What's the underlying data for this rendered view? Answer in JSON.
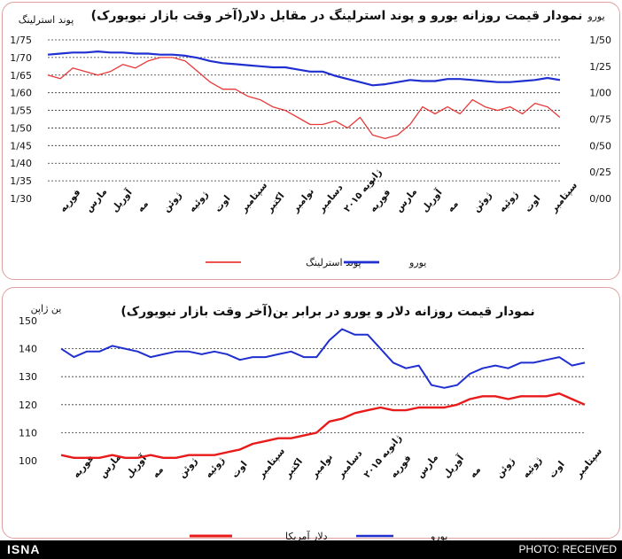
{
  "footer": {
    "brand": "ISNA",
    "credit": "PHOTO: RECEIVED"
  },
  "chart_data": [
    {
      "type": "line",
      "title": "نمودار قیمت روزانه  یورو و پوند استرلینگ در مقابل دلار(آخر وقت بازار نیویورک)",
      "left_axis_label": "پوند استرلینگ",
      "right_axis_label": "یورو",
      "left_ticks": [
        "1/30",
        "1/35",
        "1/40",
        "1/45",
        "1/50",
        "1/55",
        "1/60",
        "1/65",
        "1/70",
        "1/75"
      ],
      "right_ticks": [
        "0/00",
        "0/25",
        "0/50",
        "0/75",
        "1/00",
        "1/25",
        "1/50"
      ],
      "left_ylim": [
        1.3,
        1.75
      ],
      "right_ylim": [
        0.0,
        1.5
      ],
      "grid": "dashed",
      "legend_position": "bottom",
      "x_labels": [
        "فوریه",
        "مارس",
        "آوریل",
        "مه",
        "ژوئن",
        "ژوئیه",
        "اوت",
        "سپتامبر",
        "اکتبر",
        "نوامبر",
        "دسامبر",
        "ژانویه ۲۰۱۵",
        "فوریه",
        "مارس",
        "آوریل",
        "مه",
        "ژوئن",
        "ژوئیه",
        "اوت",
        "سپتامبر"
      ],
      "series": [
        {
          "name": "پوند استرلینگ",
          "axis": "left",
          "color": "#e8393a",
          "values": [
            1.65,
            1.64,
            1.67,
            1.66,
            1.65,
            1.66,
            1.68,
            1.67,
            1.69,
            1.7,
            1.7,
            1.69,
            1.66,
            1.63,
            1.61,
            1.61,
            1.59,
            1.58,
            1.56,
            1.55,
            1.53,
            1.51,
            1.51,
            1.52,
            1.5,
            1.53,
            1.48,
            1.47,
            1.48,
            1.51,
            1.56,
            1.54,
            1.56,
            1.54,
            1.58,
            1.56,
            1.55,
            1.56,
            1.54,
            1.57,
            1.56,
            1.53
          ]
        },
        {
          "name": "یورو",
          "axis": "right",
          "color": "#1f2fd0",
          "values": [
            1.36,
            1.37,
            1.38,
            1.38,
            1.39,
            1.38,
            1.38,
            1.37,
            1.37,
            1.36,
            1.36,
            1.35,
            1.33,
            1.3,
            1.28,
            1.27,
            1.26,
            1.25,
            1.24,
            1.24,
            1.22,
            1.2,
            1.2,
            1.16,
            1.13,
            1.1,
            1.07,
            1.08,
            1.1,
            1.12,
            1.11,
            1.11,
            1.13,
            1.13,
            1.12,
            1.11,
            1.1,
            1.1,
            1.11,
            1.12,
            1.14,
            1.12
          ]
        }
      ]
    },
    {
      "type": "line",
      "title": "نمودار قیمت روزانه دلار و یورو در برابر ین(آخر وقت بازار نیویورک)",
      "left_axis_label": "ین ژاپن",
      "left_ticks": [
        "100",
        "110",
        "120",
        "130",
        "140",
        "150"
      ],
      "ylim": [
        100,
        150
      ],
      "grid": "dashed",
      "legend_position": "bottom",
      "x_labels": [
        "فوریه",
        "مارس",
        "آوریل",
        "مه",
        "ژوئن",
        "ژوئیه",
        "اوت",
        "سپتامبر",
        "اکتبر",
        "نوامبر",
        "دسامبر",
        "ژانویه ۲۰۱۵",
        "فوریه",
        "مارس",
        "آوریل",
        "مه",
        "ژوئن",
        "ژوئیه",
        "اوت",
        "سپتامبر"
      ],
      "series": [
        {
          "name": "یورو",
          "color": "#1f2fd0",
          "values": [
            140,
            137,
            139,
            139,
            141,
            140,
            139,
            137,
            138,
            139,
            139,
            138,
            139,
            138,
            136,
            137,
            137,
            138,
            139,
            137,
            137,
            143,
            147,
            145,
            145,
            140,
            135,
            133,
            134,
            127,
            126,
            127,
            131,
            133,
            134,
            133,
            135,
            135,
            136,
            137,
            134,
            135
          ]
        },
        {
          "name": "دلار آمریکا",
          "color": "#e81a1a",
          "values": [
            102,
            101,
            101,
            101,
            102,
            101,
            101,
            102,
            101,
            101,
            102,
            102,
            102,
            103,
            104,
            106,
            107,
            108,
            108,
            109,
            110,
            114,
            115,
            117,
            118,
            119,
            118,
            118,
            119,
            119,
            119,
            120,
            122,
            123,
            123,
            122,
            123,
            123,
            123,
            124,
            122,
            120
          ]
        }
      ]
    }
  ]
}
